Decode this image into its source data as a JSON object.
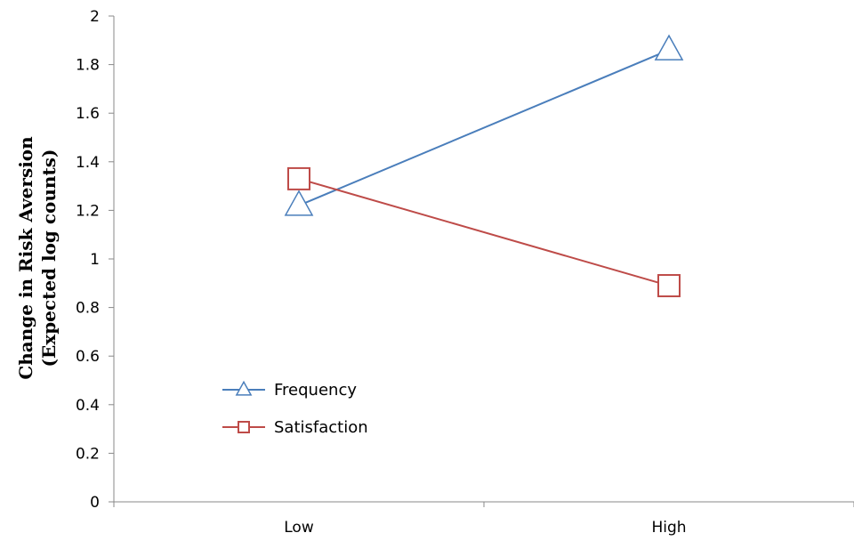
{
  "chart_data": {
    "type": "line",
    "categories": [
      "Low",
      "High"
    ],
    "ylabel_line1": "Change in Risk Aversion",
    "ylabel_line2": "(Expected log counts)",
    "ylim": [
      0,
      2
    ],
    "yticks": [
      "0",
      "0.2",
      "0.4",
      "0.6",
      "0.8",
      "1",
      "1.2",
      "1.4",
      "1.6",
      "1.8",
      "2"
    ],
    "grid": false,
    "legend_position": "lower-left",
    "series": [
      {
        "name": "Frequency",
        "values": [
          1.22,
          1.86
        ],
        "color": "#4a7ebb",
        "marker": "triangle"
      },
      {
        "name": "Satisfaction",
        "values": [
          1.33,
          0.89
        ],
        "color": "#be4b48",
        "marker": "square"
      }
    ]
  }
}
